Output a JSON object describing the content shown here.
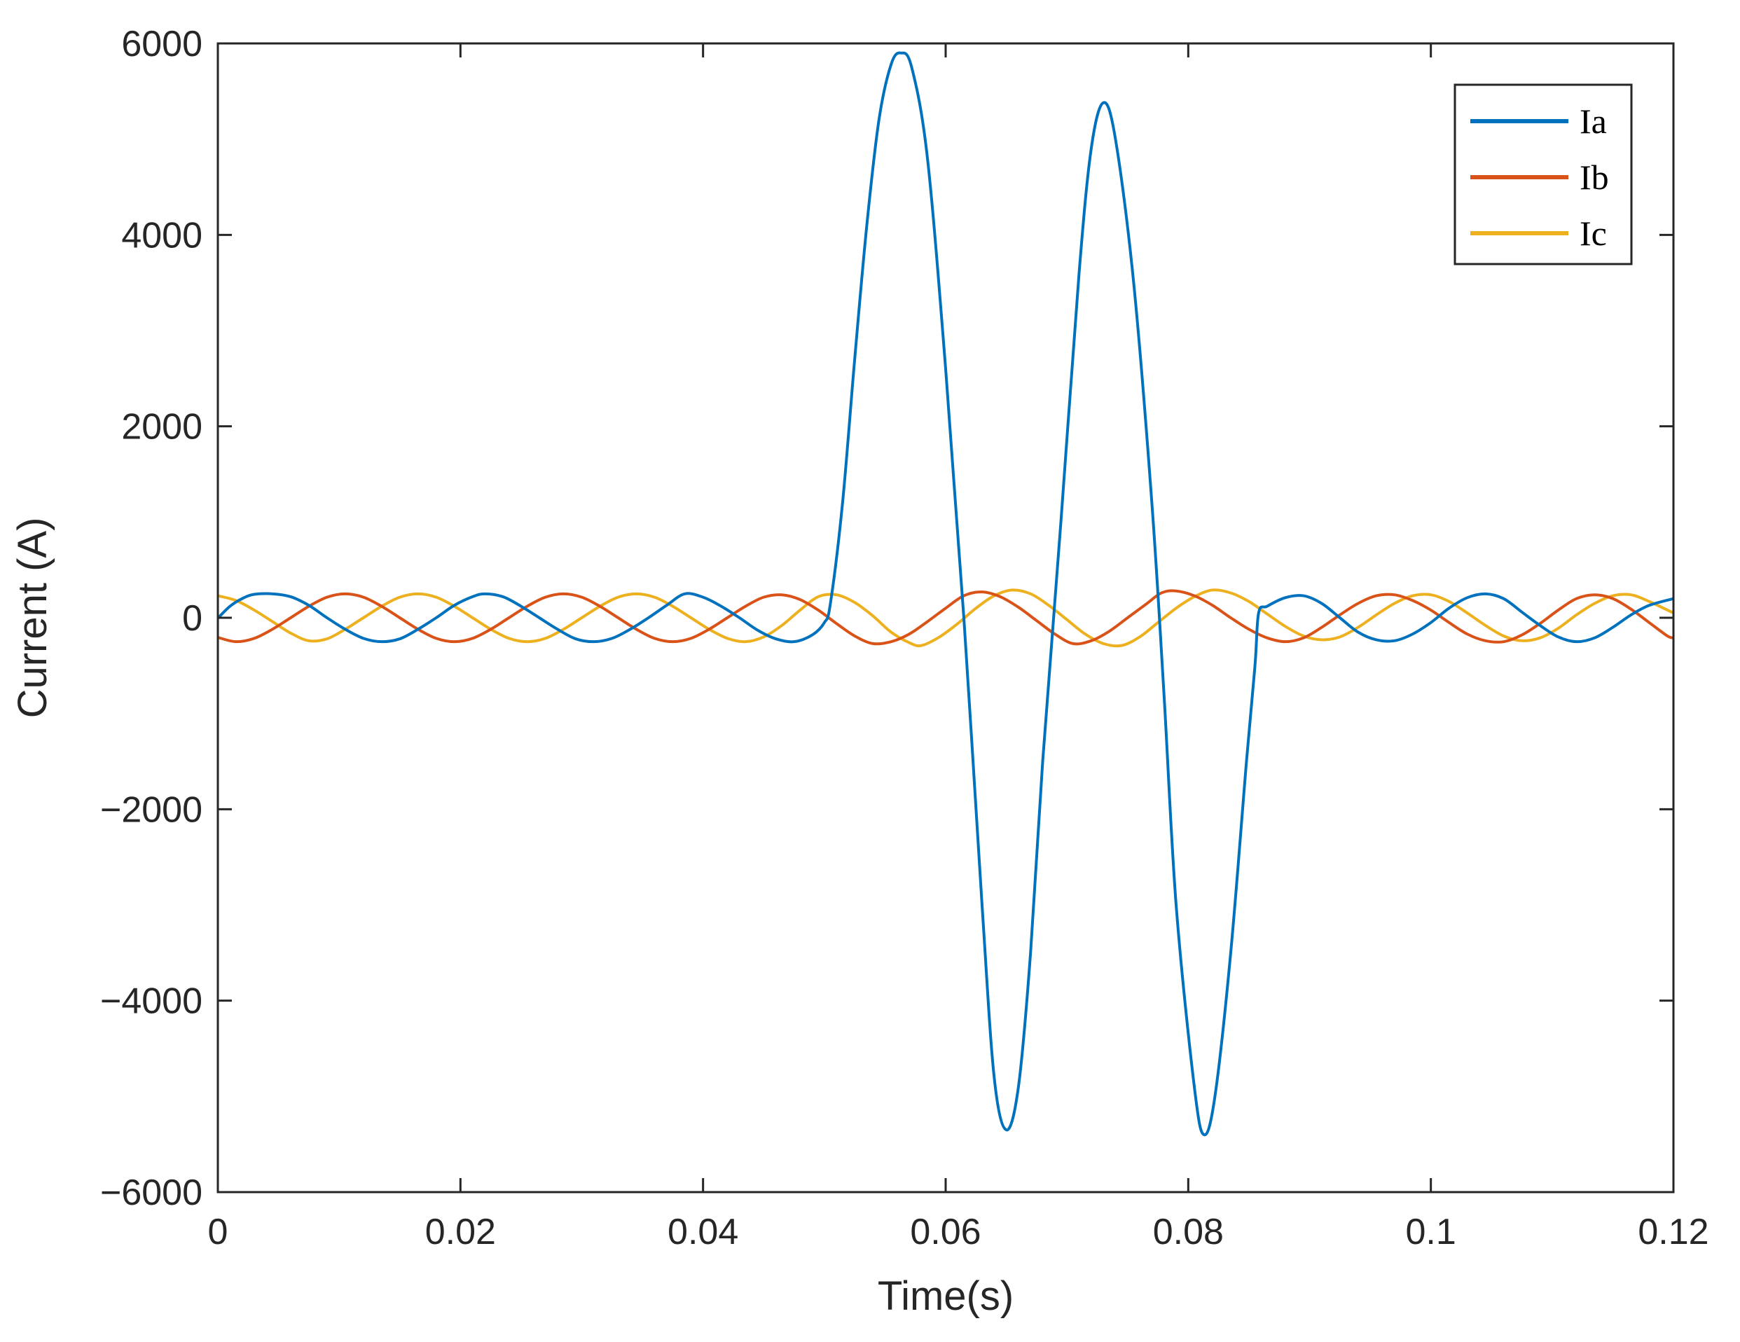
{
  "chart_data": {
    "type": "line",
    "title": "",
    "xlabel": "Time(s)",
    "ylabel": "Current (A)",
    "xlim": [
      0,
      0.12
    ],
    "ylim": [
      -6000,
      6000
    ],
    "xticks": [
      0,
      0.02,
      0.04,
      0.06,
      0.08,
      0.1,
      0.12
    ],
    "xtick_labels": [
      "0",
      "0.02",
      "0.04",
      "0.06",
      "0.08",
      "0.1",
      "0.12"
    ],
    "yticks": [
      -6000,
      -4000,
      -2000,
      0,
      2000,
      4000,
      6000
    ],
    "ytick_labels": [
      "−6000",
      "−4000",
      "−2000",
      "0",
      "2000",
      "4000",
      "6000"
    ],
    "grid": false,
    "legend_position": "top-right",
    "series": [
      {
        "name": "Ia",
        "color": "#0072BD",
        "points": [
          [
            0,
            -5
          ],
          [
            0.001,
            120
          ],
          [
            0.002,
            200
          ],
          [
            0.003,
            245
          ],
          [
            0.0045,
            250
          ],
          [
            0.006,
            220
          ],
          [
            0.0075,
            130
          ],
          [
            0.009,
            0
          ],
          [
            0.0105,
            -120
          ],
          [
            0.012,
            -215
          ],
          [
            0.0135,
            -250
          ],
          [
            0.015,
            -220
          ],
          [
            0.0165,
            -120
          ],
          [
            0.018,
            0
          ],
          [
            0.0195,
            130
          ],
          [
            0.021,
            220
          ],
          [
            0.022,
            250
          ],
          [
            0.0235,
            220
          ],
          [
            0.025,
            120
          ],
          [
            0.0265,
            0
          ],
          [
            0.028,
            -120
          ],
          [
            0.0295,
            -220
          ],
          [
            0.031,
            -250
          ],
          [
            0.0325,
            -215
          ],
          [
            0.034,
            -120
          ],
          [
            0.0355,
            0
          ],
          [
            0.037,
            130
          ],
          [
            0.0385,
            250
          ],
          [
            0.04,
            215
          ],
          [
            0.0415,
            120
          ],
          [
            0.043,
            0
          ],
          [
            0.0445,
            -130
          ],
          [
            0.046,
            -220
          ],
          [
            0.0475,
            -250
          ],
          [
            0.049,
            -180
          ],
          [
            0.05,
            -50
          ],
          [
            0.0505,
            150
          ],
          [
            0.0515,
            1200
          ],
          [
            0.0525,
            2700
          ],
          [
            0.0535,
            4100
          ],
          [
            0.0545,
            5200
          ],
          [
            0.0555,
            5780
          ],
          [
            0.0563,
            5900
          ],
          [
            0.0572,
            5750
          ],
          [
            0.0585,
            4800
          ],
          [
            0.06,
            2600
          ],
          [
            0.0615,
            0
          ],
          [
            0.063,
            -3000
          ],
          [
            0.064,
            -4800
          ],
          [
            0.065,
            -5350
          ],
          [
            0.066,
            -4900
          ],
          [
            0.067,
            -3500
          ],
          [
            0.068,
            -1500
          ],
          [
            0.0695,
            1000
          ],
          [
            0.071,
            3600
          ],
          [
            0.072,
            4900
          ],
          [
            0.073,
            5380
          ],
          [
            0.074,
            5000
          ],
          [
            0.0755,
            3500
          ],
          [
            0.077,
            1200
          ],
          [
            0.078,
            -800
          ],
          [
            0.079,
            -3000
          ],
          [
            0.0805,
            -4900
          ],
          [
            0.0813,
            -5400
          ],
          [
            0.0822,
            -5000
          ],
          [
            0.0835,
            -3500
          ],
          [
            0.0848,
            -1500
          ],
          [
            0.0855,
            -500
          ],
          [
            0.0858,
            50
          ],
          [
            0.0865,
            120
          ],
          [
            0.088,
            210
          ],
          [
            0.0895,
            230
          ],
          [
            0.091,
            150
          ],
          [
            0.0925,
            0
          ],
          [
            0.094,
            -150
          ],
          [
            0.0955,
            -230
          ],
          [
            0.097,
            -240
          ],
          [
            0.0985,
            -170
          ],
          [
            0.1,
            -50
          ],
          [
            0.1015,
            100
          ],
          [
            0.103,
            210
          ],
          [
            0.1045,
            250
          ],
          [
            0.106,
            200
          ],
          [
            0.1075,
            60
          ],
          [
            0.109,
            -80
          ],
          [
            0.1105,
            -200
          ],
          [
            0.112,
            -250
          ],
          [
            0.1135,
            -210
          ],
          [
            0.115,
            -100
          ],
          [
            0.1165,
            30
          ],
          [
            0.118,
            130
          ],
          [
            0.12,
            200
          ]
        ]
      },
      {
        "name": "Ib",
        "color": "#D95319",
        "points": [
          [
            0,
            -205
          ],
          [
            0.0015,
            -250
          ],
          [
            0.003,
            -215
          ],
          [
            0.0045,
            -120
          ],
          [
            0.006,
            0
          ],
          [
            0.0075,
            120
          ],
          [
            0.009,
            215
          ],
          [
            0.0105,
            250
          ],
          [
            0.012,
            215
          ],
          [
            0.0135,
            120
          ],
          [
            0.015,
            0
          ],
          [
            0.0165,
            -120
          ],
          [
            0.018,
            -215
          ],
          [
            0.0195,
            -250
          ],
          [
            0.021,
            -215
          ],
          [
            0.0225,
            -120
          ],
          [
            0.024,
            0
          ],
          [
            0.0255,
            120
          ],
          [
            0.027,
            215
          ],
          [
            0.0285,
            250
          ],
          [
            0.03,
            215
          ],
          [
            0.0315,
            120
          ],
          [
            0.033,
            0
          ],
          [
            0.0345,
            -120
          ],
          [
            0.036,
            -215
          ],
          [
            0.0375,
            -250
          ],
          [
            0.039,
            -215
          ],
          [
            0.0405,
            -120
          ],
          [
            0.042,
            0
          ],
          [
            0.0435,
            120
          ],
          [
            0.045,
            215
          ],
          [
            0.0465,
            240
          ],
          [
            0.048,
            190
          ],
          [
            0.0495,
            80
          ],
          [
            0.051,
            -60
          ],
          [
            0.0525,
            -190
          ],
          [
            0.054,
            -270
          ],
          [
            0.0555,
            -250
          ],
          [
            0.057,
            -170
          ],
          [
            0.0585,
            -40
          ],
          [
            0.06,
            100
          ],
          [
            0.0615,
            230
          ],
          [
            0.063,
            270
          ],
          [
            0.0645,
            220
          ],
          [
            0.066,
            110
          ],
          [
            0.0675,
            -30
          ],
          [
            0.069,
            -170
          ],
          [
            0.0705,
            -270
          ],
          [
            0.072,
            -240
          ],
          [
            0.0735,
            -140
          ],
          [
            0.075,
            0
          ],
          [
            0.0765,
            140
          ],
          [
            0.0778,
            260
          ],
          [
            0.079,
            280
          ],
          [
            0.0805,
            230
          ],
          [
            0.082,
            130
          ],
          [
            0.0835,
            0
          ],
          [
            0.085,
            -120
          ],
          [
            0.0865,
            -210
          ],
          [
            0.088,
            -250
          ],
          [
            0.0895,
            -210
          ],
          [
            0.091,
            -100
          ],
          [
            0.0925,
            30
          ],
          [
            0.094,
            150
          ],
          [
            0.0955,
            230
          ],
          [
            0.097,
            240
          ],
          [
            0.0985,
            180
          ],
          [
            0.1,
            80
          ],
          [
            0.1015,
            -50
          ],
          [
            0.103,
            -170
          ],
          [
            0.1045,
            -240
          ],
          [
            0.106,
            -250
          ],
          [
            0.1075,
            -180
          ],
          [
            0.109,
            -60
          ],
          [
            0.1105,
            80
          ],
          [
            0.112,
            200
          ],
          [
            0.1135,
            240
          ],
          [
            0.115,
            200
          ],
          [
            0.1165,
            90
          ],
          [
            0.118,
            -50
          ],
          [
            0.1195,
            -190
          ],
          [
            0.12,
            -210
          ]
        ]
      },
      {
        "name": "Ic",
        "color": "#EDB120",
        "points": [
          [
            0,
            230
          ],
          [
            0.0015,
            180
          ],
          [
            0.003,
            80
          ],
          [
            0.0045,
            -40
          ],
          [
            0.006,
            -160
          ],
          [
            0.0075,
            -240
          ],
          [
            0.009,
            -220
          ],
          [
            0.0105,
            -120
          ],
          [
            0.012,
            0
          ],
          [
            0.0135,
            120
          ],
          [
            0.015,
            215
          ],
          [
            0.0165,
            250
          ],
          [
            0.018,
            215
          ],
          [
            0.0195,
            120
          ],
          [
            0.021,
            0
          ],
          [
            0.0225,
            -120
          ],
          [
            0.024,
            -215
          ],
          [
            0.0255,
            -250
          ],
          [
            0.027,
            -215
          ],
          [
            0.0285,
            -120
          ],
          [
            0.03,
            0
          ],
          [
            0.0315,
            120
          ],
          [
            0.033,
            215
          ],
          [
            0.0345,
            250
          ],
          [
            0.036,
            215
          ],
          [
            0.0375,
            120
          ],
          [
            0.039,
            0
          ],
          [
            0.0405,
            -120
          ],
          [
            0.042,
            -215
          ],
          [
            0.0435,
            -250
          ],
          [
            0.045,
            -200
          ],
          [
            0.0465,
            -80
          ],
          [
            0.048,
            80
          ],
          [
            0.0495,
            220
          ],
          [
            0.051,
            240
          ],
          [
            0.0525,
            160
          ],
          [
            0.054,
            20
          ],
          [
            0.0555,
            -150
          ],
          [
            0.057,
            -260
          ],
          [
            0.058,
            -290
          ],
          [
            0.0595,
            -200
          ],
          [
            0.061,
            -60
          ],
          [
            0.0625,
            100
          ],
          [
            0.064,
            230
          ],
          [
            0.0655,
            290
          ],
          [
            0.067,
            250
          ],
          [
            0.0685,
            130
          ],
          [
            0.07,
            -20
          ],
          [
            0.0715,
            -170
          ],
          [
            0.073,
            -270
          ],
          [
            0.0745,
            -290
          ],
          [
            0.076,
            -200
          ],
          [
            0.0775,
            -50
          ],
          [
            0.079,
            100
          ],
          [
            0.0805,
            220
          ],
          [
            0.082,
            290
          ],
          [
            0.0835,
            260
          ],
          [
            0.085,
            170
          ],
          [
            0.0865,
            40
          ],
          [
            0.088,
            -90
          ],
          [
            0.0895,
            -190
          ],
          [
            0.091,
            -230
          ],
          [
            0.0925,
            -200
          ],
          [
            0.094,
            -100
          ],
          [
            0.0955,
            30
          ],
          [
            0.097,
            150
          ],
          [
            0.0985,
            230
          ],
          [
            0.1,
            240
          ],
          [
            0.1015,
            170
          ],
          [
            0.103,
            50
          ],
          [
            0.1045,
            -80
          ],
          [
            0.106,
            -190
          ],
          [
            0.1075,
            -240
          ],
          [
            0.109,
            -210
          ],
          [
            0.1105,
            -110
          ],
          [
            0.112,
            30
          ],
          [
            0.1135,
            150
          ],
          [
            0.115,
            230
          ],
          [
            0.1165,
            240
          ],
          [
            0.118,
            170
          ],
          [
            0.12,
            50
          ]
        ]
      }
    ]
  }
}
